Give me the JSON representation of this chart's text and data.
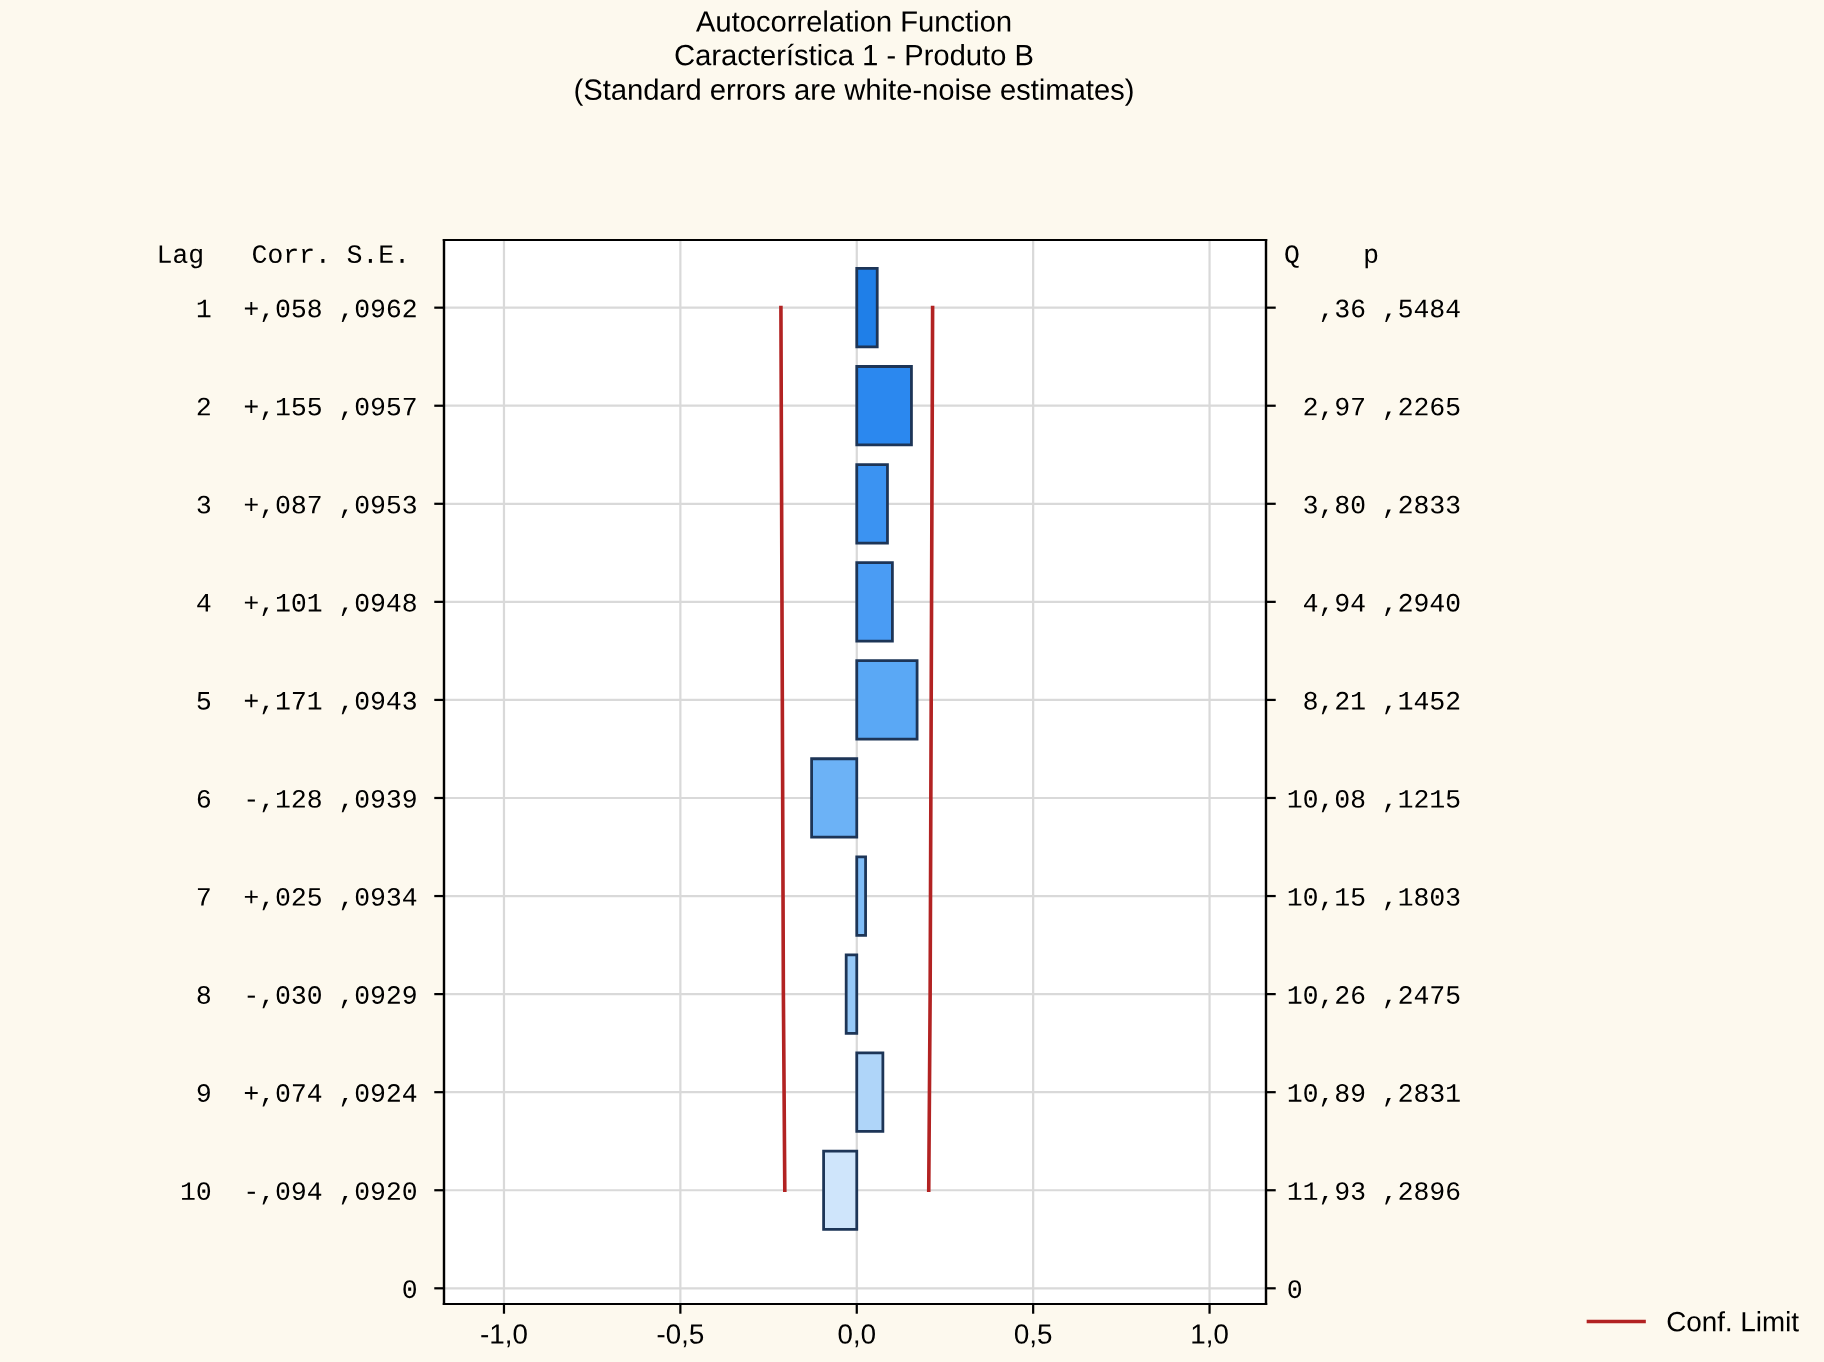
{
  "chart_data": {
    "type": "bar",
    "orientation": "horizontal",
    "title": "Autocorrelation Function",
    "subtitle": "Característica 1 - Produto B\n(Standard errors are white-noise estimates)",
    "categories": [
      " 1  +,058 ,0962",
      " 2  +,155 ,0957",
      " 3  +,087 ,0953",
      " 4  +,101 ,0948",
      " 5  +,171 ,0943",
      " 6  -,128 ,0939",
      " 7  +,025 ,0934",
      " 8  -,030 ,0929",
      " 9  +,074 ,0924",
      "10  -,094 ,0920",
      "0"
    ],
    "y2_categories": [
      "  ,36 ,5484",
      " 2,97 ,2265",
      " 3,80 ,2833",
      " 4,94 ,2940",
      " 8,21 ,1452",
      "10,08 ,1215",
      "10,15 ,1803",
      "10,26 ,2475",
      "10,89 ,2831",
      "11,93 ,2896",
      "0"
    ],
    "series": [
      {
        "values": [
          0.058,
          0.155,
          0.087,
          0.101,
          0.171,
          -0.128,
          0.025,
          -0.03,
          0.074,
          -0.094,
          null
        ],
        "colors": [
          "#1f7fe8",
          "#2b88ef",
          "#3b93f2",
          "#4a9cf4",
          "#5aa8f5",
          "#6cb2f6",
          "#80bdf7",
          "#96c9f8",
          "#afd5f9",
          "#cfe5fb",
          "#ffffff"
        ]
      },
      {
        "type": "line",
        "name": "Conf. Limit",
        "color": "#b22222",
        "values": [
          0.215,
          0.214,
          0.213,
          0.212,
          0.211,
          0.21,
          0.209,
          0.208,
          0.206,
          0.204,
          null
        ]
      },
      {
        "type": "line",
        "color": "#b22222",
        "values": [
          -0.215,
          -0.214,
          -0.213,
          -0.212,
          -0.211,
          -0.21,
          -0.209,
          -0.208,
          -0.206,
          -0.204,
          null
        ]
      }
    ],
    "xlim": [
      -1.17,
      1.16
    ],
    "xticks": [
      {
        "value": -1,
        "label": "-1,0"
      },
      {
        "value": -0.5,
        "label": "-0,5"
      },
      {
        "value": 0,
        "label": "0,0"
      },
      {
        "value": 0.5,
        "label": "0,5"
      },
      {
        "value": 1,
        "label": "1,0"
      }
    ],
    "annotations": [
      "Lag   Corr. S.E.",
      "Q    p"
    ],
    "grid": true,
    "legend": "bottom right"
  }
}
